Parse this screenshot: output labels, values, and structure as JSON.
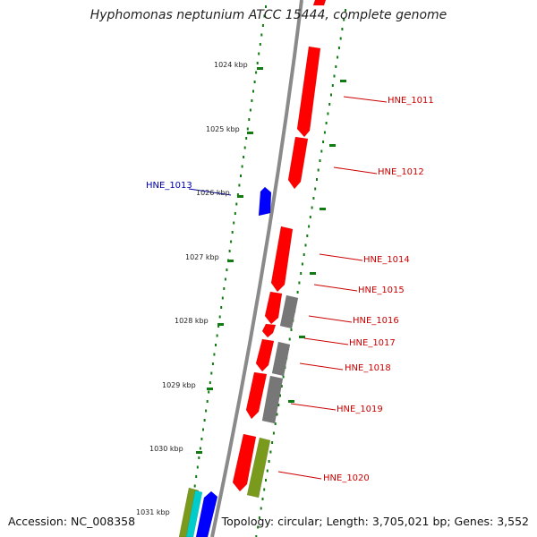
{
  "title": "Hyphomonas neptunium ATCC 15444, complete genome",
  "footer": {
    "accession": "Accession: NC_008358",
    "summary": "Topology: circular; Length: 3,705,021 bp; Genes: 3,552"
  },
  "colors": {
    "forward_gene": "#ff0000",
    "reverse_gene": "#0000ff",
    "other_feature": "#777777",
    "olive_feature": "#7a9a1e",
    "cyan_feature": "#00cccc",
    "tick": "#127a12",
    "backbone": "#8a8a8a",
    "label_red": "#cc0000",
    "label_blue": "#0000aa"
  },
  "scale_labels": [
    "1024 kbp",
    "1025 kbp",
    "1026 kbp",
    "1027 kbp",
    "1028 kbp",
    "1029 kbp",
    "1030 kbp",
    "1031 kbp"
  ],
  "gene_labels": [
    {
      "text": "HNE_1011",
      "color": "red"
    },
    {
      "text": "HNE_1012",
      "color": "red"
    },
    {
      "text": "HNE_1013",
      "color": "blue"
    },
    {
      "text": "HNE_1014",
      "color": "red"
    },
    {
      "text": "HNE_1015",
      "color": "red"
    },
    {
      "text": "HNE_1016",
      "color": "red"
    },
    {
      "text": "HNE_1017",
      "color": "red"
    },
    {
      "text": "HNE_1018",
      "color": "red"
    },
    {
      "text": "HNE_1019",
      "color": "red"
    },
    {
      "text": "HNE_1020",
      "color": "red"
    }
  ]
}
